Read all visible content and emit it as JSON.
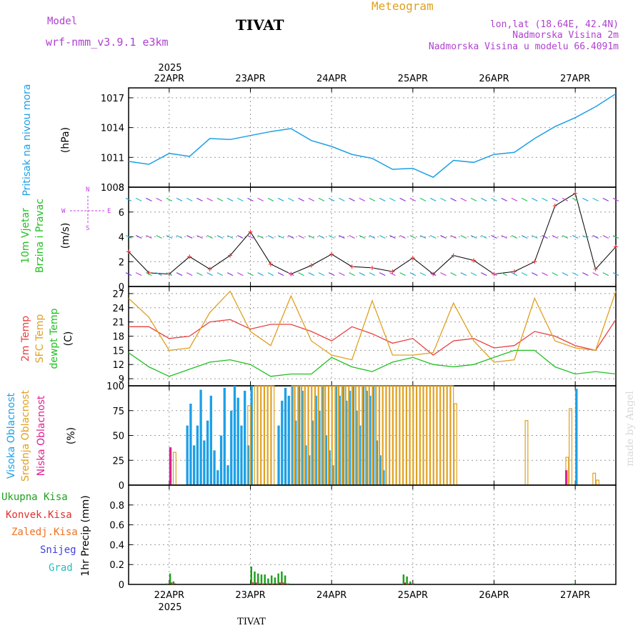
{
  "header": {
    "model_label": "Model",
    "model_name": "wrf-nmm_v3.9.1 e3km",
    "station": "TIVAT",
    "title": "Meteogram",
    "lonlat": "lon,lat (18.64E, 42.4N)",
    "elevation": "Nadmorska Visina 2m",
    "model_elevation": "Nadmorska Visina u modelu 66.4091m",
    "footer_station": "TIVAT",
    "credit": "made by Angel"
  },
  "colors": {
    "pressure": "#1ca0e6",
    "wind_dir_label": "#c040e0",
    "temp2m": "#e84040",
    "sfc": "#e0a020",
    "dew": "#20c020",
    "high_cloud": "#1ca0e6",
    "mid_cloud": "#e0a020",
    "low_cloud": "#e02090",
    "total_precip": "#20a020",
    "conv_precip": "#e03030",
    "frozen": "#f07020",
    "snow": "#4040e0",
    "grad": "#20c0c0"
  },
  "time_axis": {
    "year": "2025",
    "days": [
      "22APR",
      "23APR",
      "24APR",
      "25APR",
      "26APR",
      "27APR"
    ],
    "hours_start_offset": -12,
    "hours_total": 144
  },
  "chart_data": [
    {
      "type": "line",
      "id": "pressure",
      "title": "Pritisak na nivou mora",
      "ylabel": "(hPa)",
      "ylim": [
        1008,
        1018
      ],
      "yticks": [
        1008,
        1011,
        1014,
        1017
      ],
      "ytick_labels": [
        "1008",
        "1011",
        "1014",
        "1017"
      ],
      "series": [
        {
          "name": "Pritisak na nivou mora",
          "x": [
            0,
            6,
            12,
            18,
            24,
            30,
            36,
            42,
            48,
            54,
            60,
            66,
            72,
            78,
            84,
            90,
            96,
            102,
            108,
            114,
            120,
            126,
            132,
            138,
            144
          ],
          "values": [
            1010.6,
            1010.3,
            1011.4,
            1011.1,
            1012.9,
            1012.8,
            1013.2,
            1013.6,
            1013.9,
            1012.7,
            1012.1,
            1011.3,
            1010.9,
            1009.8,
            1009.9,
            1009.0,
            1010.7,
            1010.5,
            1011.3,
            1011.5,
            1012.9,
            1014.1,
            1015.0,
            1016.1,
            1017.4
          ]
        }
      ]
    },
    {
      "type": "line",
      "id": "wind",
      "title": "10m Vjetar Brzina i Pravac",
      "title_lines": [
        "10m Vjetar",
        "Brzina i Pravac"
      ],
      "ylabel": "(m/s)",
      "ylim": [
        0,
        8
      ],
      "yticks": [
        0,
        2,
        4,
        6,
        8
      ],
      "ytick_labels": [
        "0",
        "2",
        "4",
        "6",
        "8"
      ],
      "compass": {
        "n": "N",
        "e": "E",
        "s": "S",
        "w": "W"
      },
      "series": [
        {
          "name": "wind speed",
          "x": [
            0,
            6,
            12,
            18,
            24,
            30,
            36,
            42,
            48,
            54,
            60,
            66,
            72,
            78,
            84,
            90,
            96,
            102,
            108,
            114,
            120,
            126,
            132,
            138,
            144
          ],
          "values": [
            2.8,
            1.1,
            1.0,
            2.4,
            1.4,
            2.5,
            4.4,
            1.8,
            1.0,
            1.7,
            2.6,
            1.6,
            1.5,
            1.2,
            2.3,
            1.0,
            2.5,
            2.1,
            1.0,
            1.2,
            2.0,
            6.5,
            7.5,
            1.4,
            3.2
          ]
        }
      ],
      "direction_bands": [
        {
          "level": 7,
          "label": "N"
        },
        {
          "level": 4,
          "label": "W"
        },
        {
          "level": 1,
          "label": "S"
        }
      ]
    },
    {
      "type": "line",
      "id": "temperature",
      "title_lines": [
        "2m Temp",
        "SFC Temp",
        "dewpt Temp"
      ],
      "ylabel": "(C)",
      "ylim": [
        7.5,
        28.5
      ],
      "yticks": [
        9,
        12,
        15,
        18,
        21,
        24,
        27
      ],
      "ytick_labels": [
        "9",
        "12",
        "15",
        "18",
        "21",
        "24",
        "27"
      ],
      "series": [
        {
          "name": "2m Temp",
          "x": [
            0,
            6,
            12,
            18,
            24,
            30,
            36,
            42,
            48,
            54,
            60,
            66,
            72,
            78,
            84,
            90,
            96,
            102,
            108,
            114,
            120,
            126,
            132,
            138,
            144
          ],
          "values": [
            20.0,
            20.0,
            17.5,
            18.0,
            21.0,
            21.5,
            19.5,
            20.5,
            20.5,
            19.0,
            17.0,
            20.0,
            18.5,
            16.5,
            17.5,
            14.0,
            17.0,
            17.5,
            15.5,
            16.0,
            19.0,
            18.0,
            16.0,
            15.0,
            21.5
          ]
        },
        {
          "name": "SFC Temp",
          "x": [
            0,
            6,
            12,
            18,
            24,
            30,
            36,
            42,
            48,
            54,
            60,
            66,
            72,
            78,
            84,
            90,
            96,
            102,
            108,
            114,
            120,
            126,
            132,
            138,
            144
          ],
          "values": [
            26.0,
            22.0,
            15.0,
            15.5,
            23.0,
            27.5,
            19.0,
            16.0,
            26.5,
            17.0,
            14.0,
            13.0,
            25.5,
            14.0,
            14.0,
            14.5,
            25.0,
            17.0,
            12.5,
            13.0,
            26.0,
            17.0,
            15.5,
            15.0,
            27.5
          ]
        },
        {
          "name": "dewpt Temp",
          "x": [
            0,
            6,
            12,
            18,
            24,
            30,
            36,
            42,
            48,
            54,
            60,
            66,
            72,
            78,
            84,
            90,
            96,
            102,
            108,
            114,
            120,
            126,
            132,
            138,
            144
          ],
          "values": [
            14.5,
            11.5,
            9.5,
            11.0,
            12.5,
            13.0,
            12.0,
            9.5,
            10.0,
            10.0,
            13.5,
            11.5,
            10.5,
            12.5,
            13.5,
            12.0,
            11.5,
            12.0,
            13.5,
            15.0,
            15.0,
            11.5,
            10.0,
            10.5,
            10.0
          ]
        }
      ]
    },
    {
      "type": "bar",
      "id": "clouds",
      "title_lines": [
        "Visoka Oblacnost",
        "Srednja Oblacnost",
        "Niska Oblacnost"
      ],
      "ylabel": "(%)",
      "ylim": [
        0,
        100
      ],
      "yticks": [
        0,
        25,
        50,
        75,
        100
      ],
      "ytick_labels": [
        "0",
        "25",
        "50",
        "75",
        "100"
      ],
      "x": [
        12,
        13,
        14,
        15,
        16,
        17,
        18,
        19,
        20,
        21,
        22,
        23,
        24,
        25,
        26,
        27,
        28,
        29,
        30,
        31,
        32,
        33,
        34,
        35,
        36,
        37,
        38,
        39,
        40,
        41,
        42,
        43,
        44,
        45,
        46,
        47,
        48,
        49,
        50,
        51,
        52,
        53,
        54,
        55,
        56,
        57,
        58,
        59,
        60,
        61,
        62,
        63,
        64,
        65,
        66,
        67,
        68,
        69,
        70,
        71,
        72,
        73,
        74,
        75,
        76,
        77,
        78,
        79,
        80,
        81,
        82,
        83,
        84,
        85,
        86,
        87,
        88,
        89,
        90,
        91,
        92,
        93,
        94,
        95,
        96,
        97,
        98,
        99,
        100,
        101,
        102,
        103,
        104,
        105,
        106,
        107,
        108,
        109,
        110,
        111,
        112,
        113,
        114,
        115,
        116,
        117,
        118,
        119,
        120,
        121,
        122,
        123,
        124,
        125,
        126,
        127,
        128,
        129,
        130,
        131,
        132,
        133,
        134,
        135,
        136,
        137,
        138,
        139,
        140,
        141,
        142,
        143,
        144
      ],
      "series": [
        {
          "name": "Visoka Oblacnost",
          "values": [
            38,
            0,
            0,
            0,
            0,
            60,
            82,
            40,
            60,
            96,
            45,
            65,
            90,
            35,
            15,
            50,
            98,
            20,
            75,
            100,
            88,
            60,
            95,
            40,
            100,
            0,
            0,
            0,
            0,
            0,
            0,
            0,
            60,
            85,
            98,
            90,
            100,
            65,
            100,
            95,
            40,
            30,
            65,
            90,
            75,
            100,
            50,
            35,
            20,
            100,
            90,
            100,
            85,
            95,
            100,
            75,
            60,
            100,
            95,
            90,
            100,
            45,
            30,
            15,
            0,
            0,
            0,
            0,
            0,
            0,
            0,
            0,
            0,
            0,
            0,
            0,
            0,
            0,
            0,
            0,
            0,
            0,
            0,
            0,
            0,
            0,
            0,
            0,
            0,
            0,
            0,
            0,
            0,
            0,
            0,
            0,
            0,
            0,
            0,
            0,
            0,
            0,
            0,
            0,
            0,
            0,
            0,
            0,
            0,
            0,
            0,
            0,
            0,
            0,
            0,
            0,
            0,
            0,
            0,
            0,
            97,
            0,
            0,
            0,
            0,
            0,
            0,
            0,
            0,
            0,
            0,
            0,
            0
          ]
        },
        {
          "name": "Srednja Oblacnost",
          "values": [
            0,
            33,
            0,
            0,
            0,
            0,
            0,
            0,
            0,
            0,
            0,
            0,
            0,
            0,
            0,
            0,
            0,
            0,
            0,
            0,
            0,
            0,
            0,
            80,
            0,
            100,
            100,
            100,
            100,
            100,
            100,
            0,
            0,
            0,
            0,
            0,
            100,
            100,
            100,
            100,
            100,
            100,
            100,
            100,
            100,
            100,
            100,
            100,
            100,
            100,
            100,
            100,
            100,
            100,
            100,
            100,
            100,
            100,
            100,
            100,
            100,
            100,
            100,
            100,
            100,
            100,
            100,
            100,
            100,
            100,
            100,
            100,
            100,
            100,
            100,
            100,
            100,
            100,
            100,
            100,
            100,
            100,
            100,
            100,
            82,
            0,
            0,
            0,
            0,
            0,
            0,
            0,
            0,
            0,
            0,
            0,
            0,
            0,
            0,
            0,
            0,
            0,
            0,
            0,
            0,
            65,
            0,
            0,
            0,
            0,
            0,
            0,
            0,
            0,
            0,
            0,
            0,
            28,
            77,
            0,
            0,
            0,
            0,
            0,
            0,
            12,
            5,
            0,
            0,
            0,
            0,
            0,
            0
          ]
        },
        {
          "name": "Niska Oblacnost",
          "values": [
            38,
            0,
            0,
            0,
            0,
            0,
            0,
            0,
            0,
            0,
            0,
            0,
            0,
            0,
            0,
            0,
            0,
            0,
            0,
            0,
            0,
            0,
            0,
            0,
            0,
            0,
            0,
            0,
            0,
            0,
            0,
            0,
            0,
            0,
            0,
            0,
            0,
            0,
            0,
            0,
            0,
            0,
            0,
            0,
            0,
            0,
            0,
            0,
            0,
            0,
            0,
            0,
            0,
            0,
            0,
            0,
            0,
            0,
            0,
            0,
            0,
            0,
            0,
            0,
            0,
            0,
            0,
            0,
            0,
            0,
            0,
            0,
            0,
            0,
            0,
            0,
            0,
            0,
            0,
            0,
            0,
            0,
            0,
            0,
            0,
            0,
            0,
            0,
            0,
            0,
            0,
            0,
            0,
            0,
            0,
            0,
            0,
            0,
            0,
            0,
            0,
            0,
            0,
            0,
            0,
            0,
            0,
            0,
            0,
            0,
            0,
            0,
            0,
            0,
            0,
            0,
            0,
            15,
            0,
            0,
            0,
            0,
            0,
            0,
            0,
            0,
            0,
            0,
            0,
            0,
            0,
            0,
            0
          ]
        }
      ]
    },
    {
      "type": "bar",
      "id": "precip",
      "title": "1hr Precip",
      "ylabel": "1hr Precip (mm)",
      "legend": [
        "Ukupna Kisa",
        "Konvek.Kisa",
        "Zaledj.Kisa",
        "Snijeg",
        "Grad"
      ],
      "ylim": [
        0,
        1
      ],
      "yticks": [
        0,
        0.2,
        0.4,
        0.6,
        0.8
      ],
      "ytick_labels": [
        "0",
        "0.2",
        "0.4",
        "0.6",
        "0.8"
      ],
      "x": [
        11,
        12,
        13,
        36,
        37,
        38,
        39,
        40,
        41,
        42,
        43,
        44,
        45,
        46,
        47,
        81,
        82,
        83,
        84,
        131
      ],
      "series": [
        {
          "name": "Ukupna Kisa",
          "values": [
            0.01,
            0.11,
            0.03,
            0.18,
            0.13,
            0.11,
            0.1,
            0.1,
            0.06,
            0.09,
            0.07,
            0.11,
            0.13,
            0.09,
            0.01,
            0.1,
            0.08,
            0.03,
            0.01,
            0.01
          ]
        },
        {
          "name": "Konvek.Kisa",
          "values": [
            0,
            0.02,
            0.01,
            0.02,
            0.02,
            0.01,
            0.01,
            0.01,
            0.01,
            0.01,
            0.01,
            0.02,
            0.02,
            0.01,
            0,
            0.02,
            0.01,
            0.01,
            0,
            0
          ]
        }
      ]
    }
  ]
}
